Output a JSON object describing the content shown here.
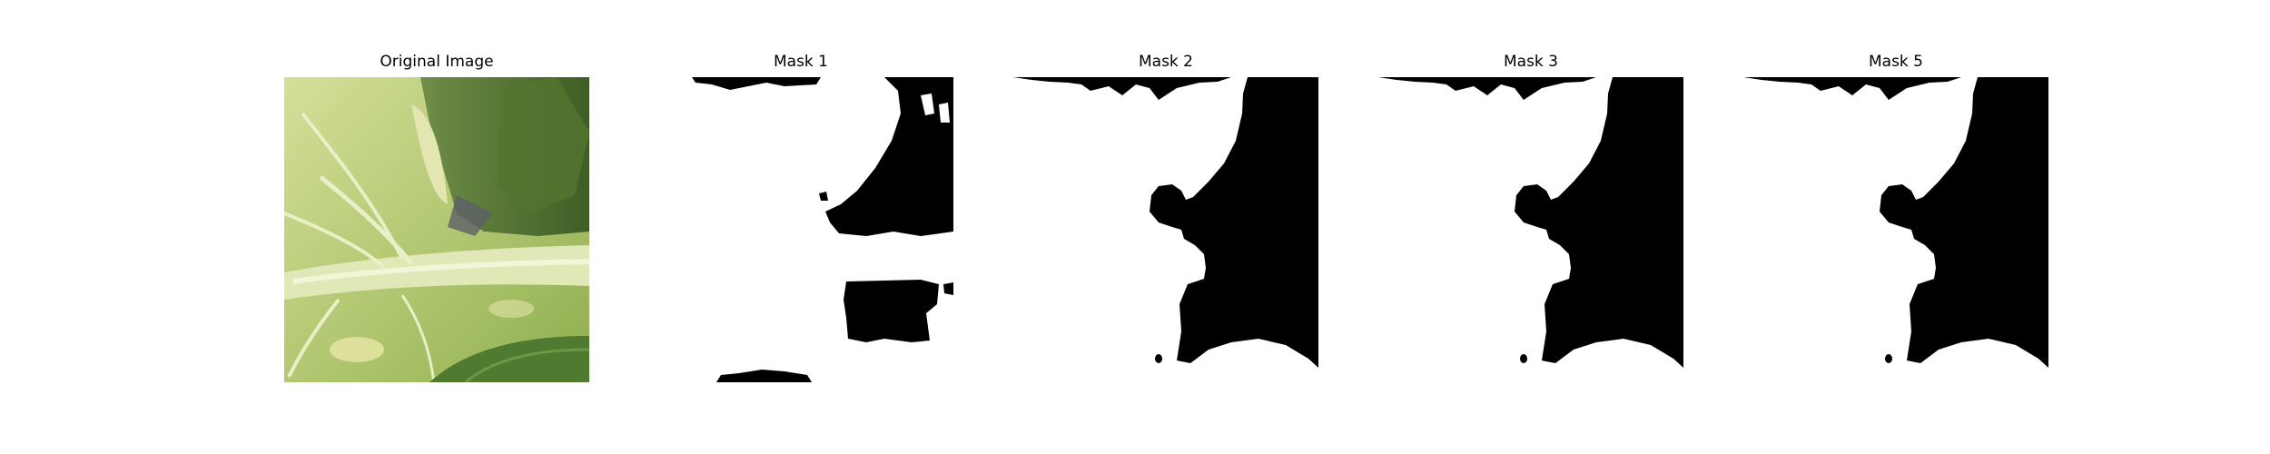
{
  "panels": [
    {
      "title": "Original Image",
      "kind": "photo"
    },
    {
      "title": "Mask 1",
      "kind": "mask"
    },
    {
      "title": "Mask 2",
      "kind": "mask"
    },
    {
      "title": "Mask 3",
      "kind": "mask"
    },
    {
      "title": "Mask 5",
      "kind": "mask"
    }
  ],
  "colors": {
    "leaf_light": "#c9d98a",
    "leaf_mid": "#a8c165",
    "leaf_dark": "#6e8f3a",
    "shadow": "#4a6a2a",
    "mask_black": "#000000",
    "mask_white": "#ffffff"
  }
}
